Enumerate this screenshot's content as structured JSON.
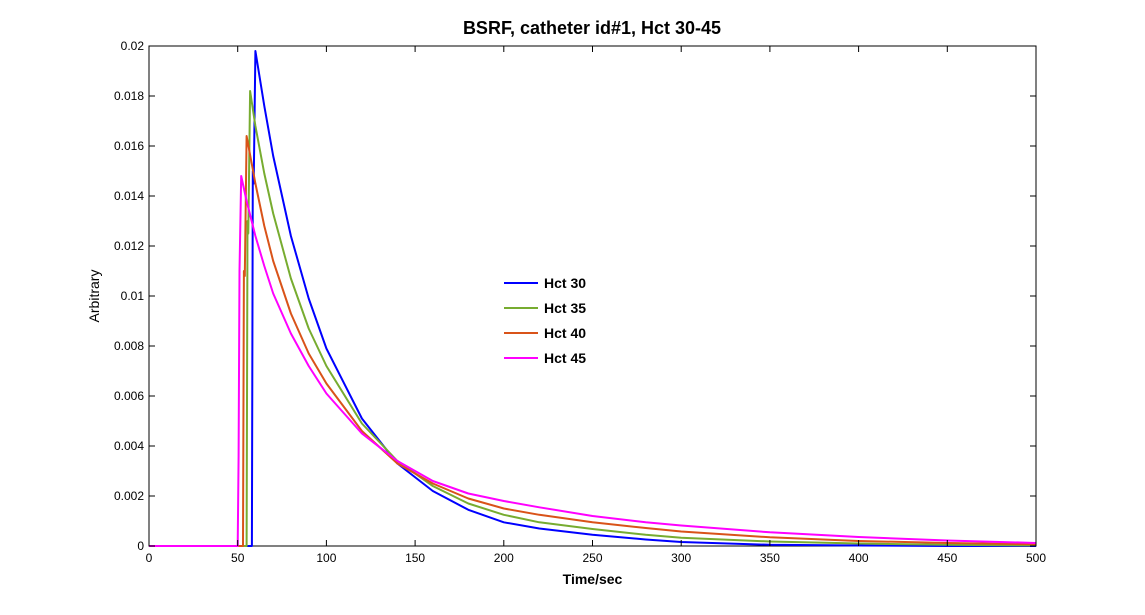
{
  "chart_data": {
    "type": "line",
    "title": "BSRF, catheter id#1, Hct 30-45",
    "xlabel": "Time/sec",
    "ylabel": "Arbitrary",
    "xlim": [
      0,
      500
    ],
    "ylim": [
      0,
      0.02
    ],
    "xticks": [
      "0",
      "50",
      "100",
      "150",
      "200",
      "250",
      "300",
      "350",
      "400",
      "450",
      "500"
    ],
    "yticks": [
      "0",
      "0.002",
      "0.004",
      "0.006",
      "0.008",
      "0.01",
      "0.012",
      "0.014",
      "0.016",
      "0.018",
      "0.02"
    ],
    "grid": false,
    "legend_position": "center",
    "series": [
      {
        "name": "Hct 30",
        "color": "#0000ff",
        "x": [
          0,
          58,
          58.5,
          59,
          60,
          65,
          70,
          80,
          90,
          100,
          120,
          140,
          160,
          180,
          200,
          220,
          250,
          280,
          300,
          350,
          400,
          450,
          500
        ],
        "y": [
          0,
          0,
          0.015,
          0.0145,
          0.0198,
          0.0176,
          0.0156,
          0.0124,
          0.0099,
          0.0079,
          0.0051,
          0.0033,
          0.0022,
          0.00145,
          0.00095,
          0.0007,
          0.00045,
          0.00026,
          0.00016,
          5e-05,
          2e-05,
          0.0,
          0.0
        ]
      },
      {
        "name": "Hct 35",
        "color": "#77ac30",
        "x": [
          0,
          55,
          55.5,
          56,
          57,
          60,
          65,
          70,
          80,
          90,
          100,
          120,
          140,
          160,
          180,
          200,
          220,
          250,
          280,
          300,
          350,
          400,
          450,
          500
        ],
        "y": [
          0,
          0,
          0.013,
          0.0125,
          0.0182,
          0.0168,
          0.0149,
          0.0133,
          0.0107,
          0.0087,
          0.0072,
          0.0049,
          0.0034,
          0.0024,
          0.0017,
          0.00125,
          0.00095,
          0.00068,
          0.00045,
          0.00033,
          0.00018,
          0.0001,
          5e-05,
          2e-05
        ]
      },
      {
        "name": "Hct 40",
        "color": "#d95319",
        "x": [
          0,
          53,
          53.5,
          54,
          55,
          60,
          65,
          70,
          80,
          90,
          100,
          120,
          140,
          160,
          180,
          200,
          220,
          250,
          280,
          300,
          350,
          400,
          450,
          500
        ],
        "y": [
          0,
          0,
          0.011,
          0.0108,
          0.0164,
          0.0145,
          0.0128,
          0.0114,
          0.0093,
          0.0077,
          0.0065,
          0.0046,
          0.0033,
          0.0025,
          0.0019,
          0.0015,
          0.00125,
          0.00095,
          0.00072,
          0.00058,
          0.00035,
          0.0002,
          0.00012,
          7e-05
        ]
      },
      {
        "name": "Hct 45",
        "color": "#ff00ff",
        "x": [
          0,
          50,
          50.5,
          51,
          52,
          55,
          60,
          65,
          70,
          80,
          90,
          100,
          120,
          140,
          160,
          180,
          200,
          220,
          250,
          280,
          300,
          350,
          400,
          450,
          500
        ],
        "y": [
          0,
          0,
          0.0036,
          0.011,
          0.0148,
          0.0138,
          0.0124,
          0.0112,
          0.0101,
          0.0085,
          0.0072,
          0.0061,
          0.0045,
          0.0034,
          0.0026,
          0.0021,
          0.0018,
          0.00155,
          0.0012,
          0.00095,
          0.00082,
          0.00055,
          0.00036,
          0.00022,
          0.00012
        ]
      }
    ]
  }
}
